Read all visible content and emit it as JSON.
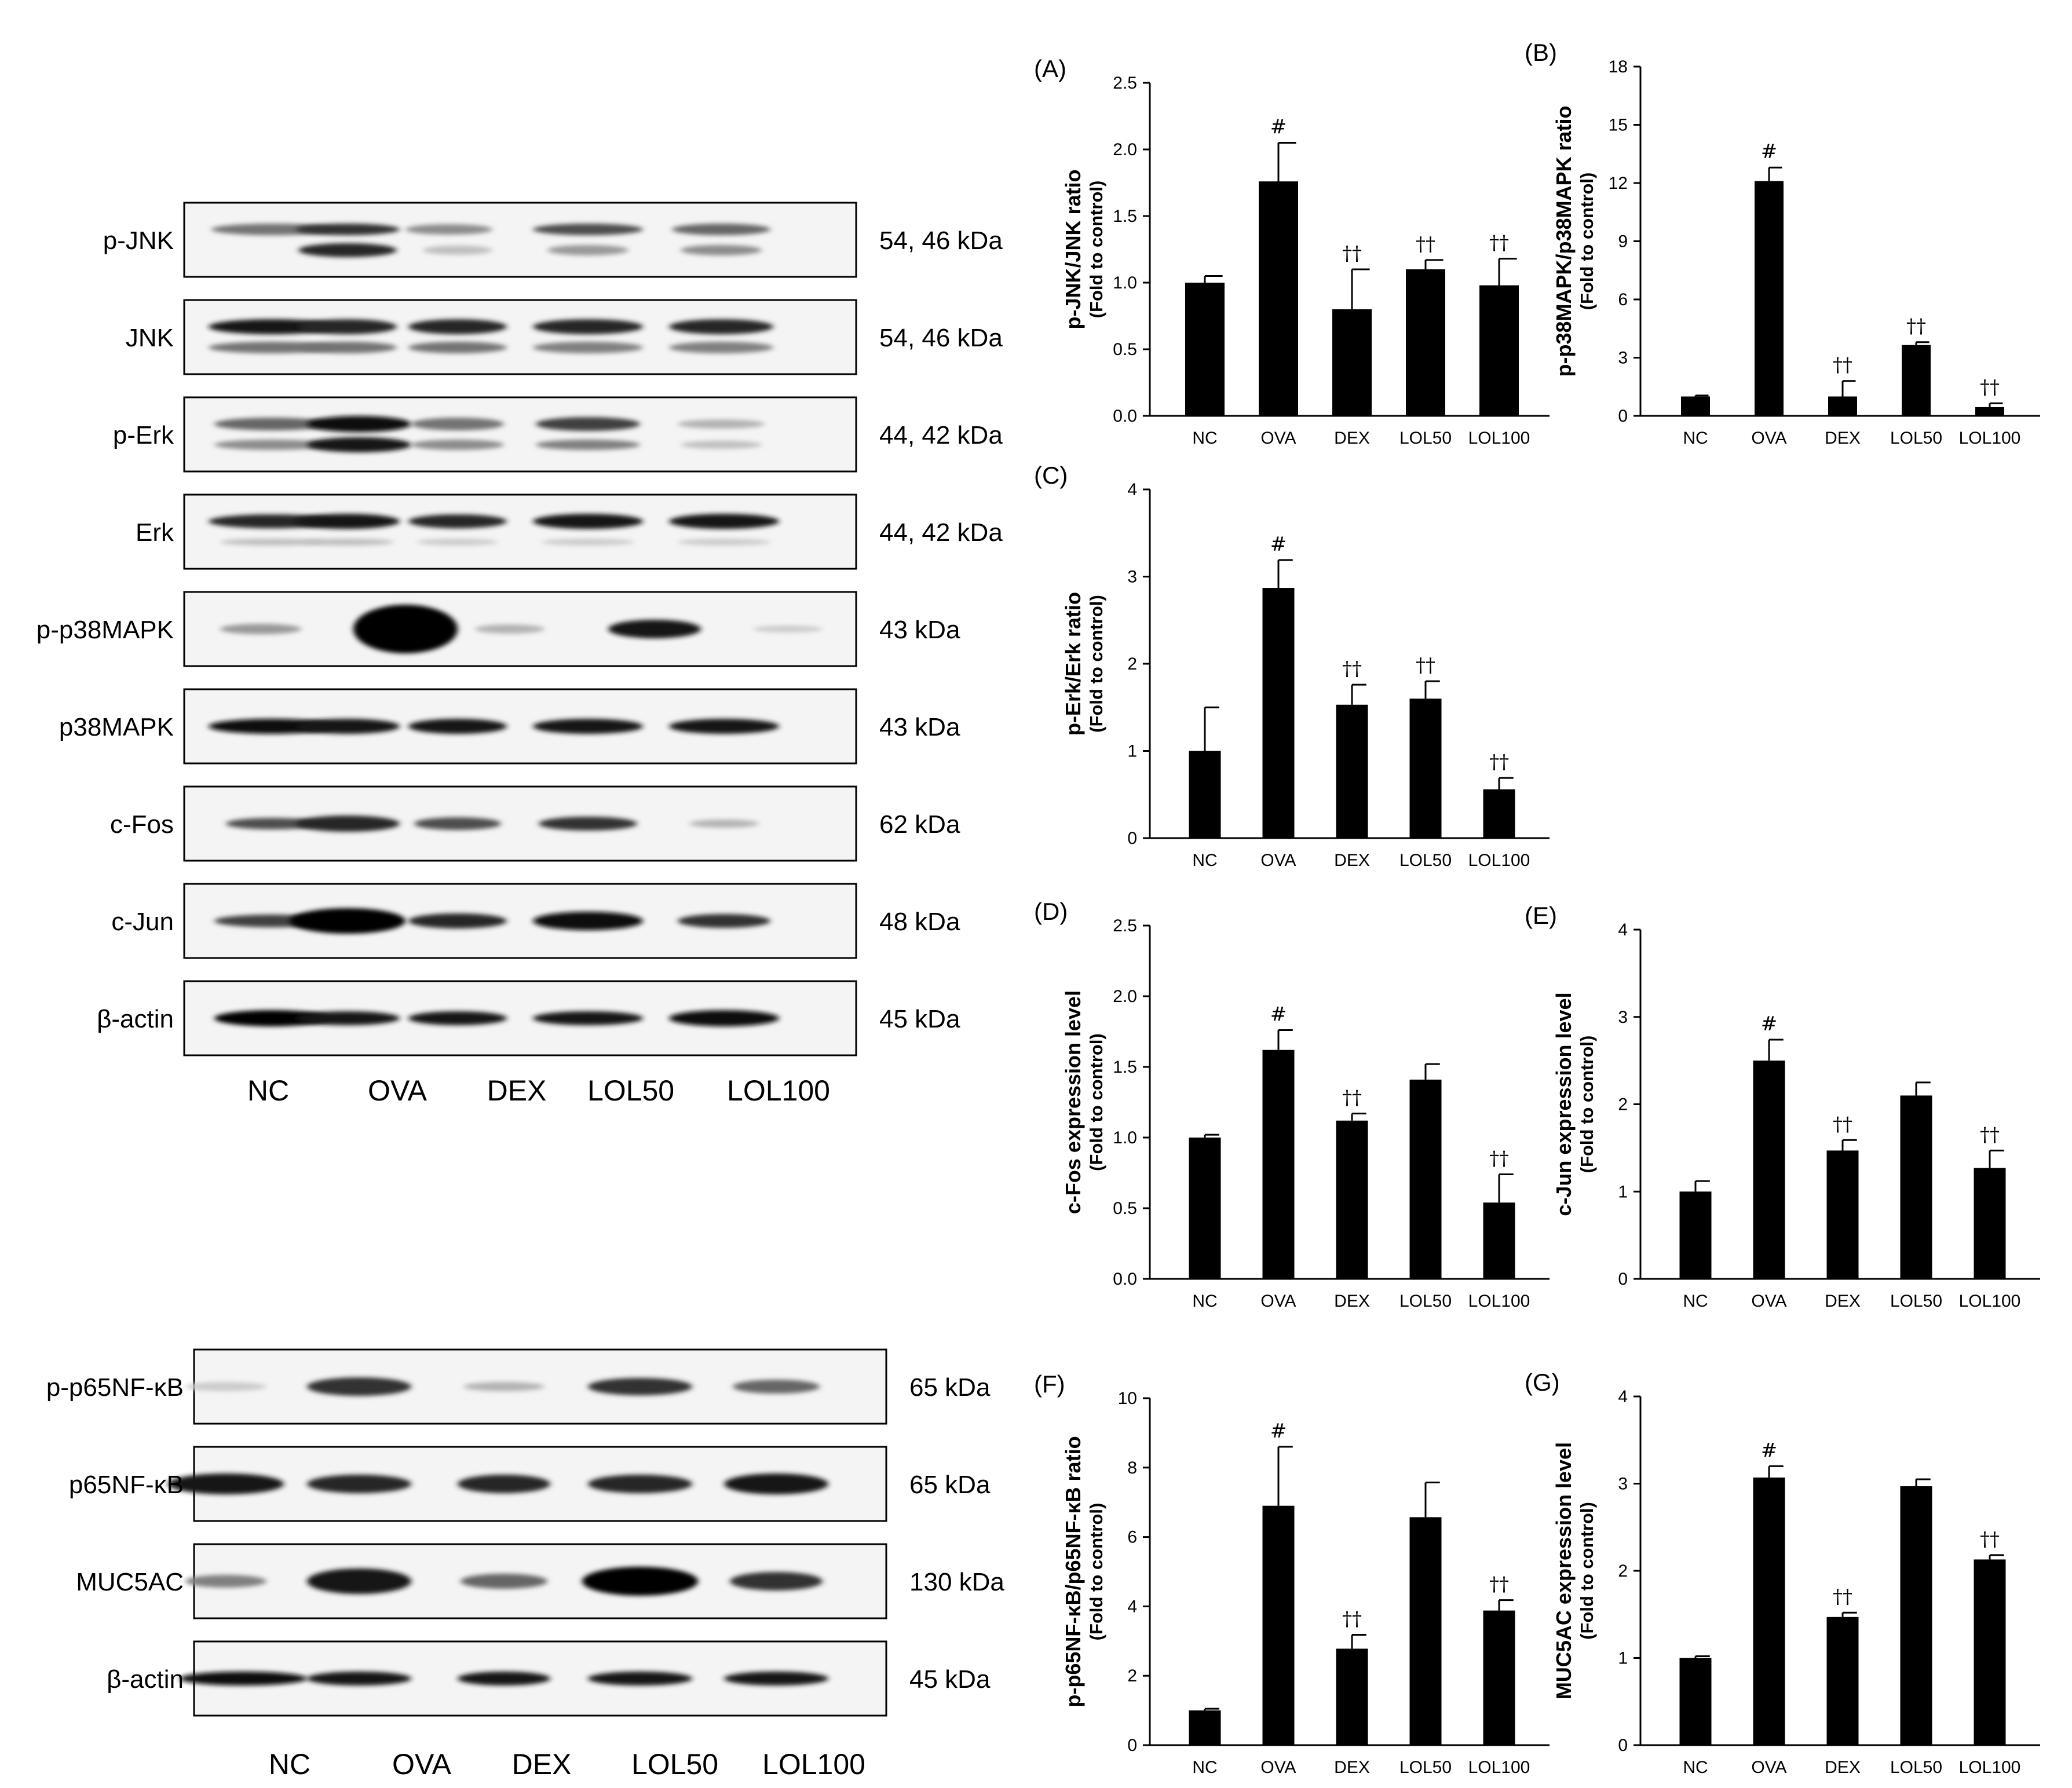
{
  "blots": {
    "top": {
      "rows": [
        {
          "label": "p-JNK",
          "size": "54, 46 kDa"
        },
        {
          "label": "JNK",
          "size": "54, 46 kDa"
        },
        {
          "label": "p-Erk",
          "size": "44, 42 kDa"
        },
        {
          "label": "Erk",
          "size": "44, 42 kDa"
        },
        {
          "label": "p-p38MAPK",
          "size": "43 kDa"
        },
        {
          "label": "p38MAPK",
          "size": "43 kDa"
        },
        {
          "label": "c-Fos",
          "size": "62 kDa"
        },
        {
          "label": "c-Jun",
          "size": "48 kDa"
        },
        {
          "label": "β-actin",
          "size": "45 kDa"
        }
      ],
      "lanes": [
        "NC",
        "OVA",
        "DEX",
        "LOL50",
        "LOL100"
      ]
    },
    "bottom": {
      "rows": [
        {
          "label": "p-p65NF-κB",
          "size": "65 kDa"
        },
        {
          "label": "p65NF-κB",
          "size": "65 kDa"
        },
        {
          "label": "MUC5AC",
          "size": "130 kDa"
        },
        {
          "label": "β-actin",
          "size": "45 kDa"
        }
      ],
      "lanes": [
        "NC",
        "OVA",
        "DEX",
        "LOL50",
        "LOL100"
      ]
    }
  },
  "chart_data": [
    {
      "panel": "(A)",
      "type": "bar",
      "categories": [
        "NC",
        "OVA",
        "DEX",
        "LOL50",
        "LOL100"
      ],
      "values": [
        1.0,
        1.76,
        0.8,
        1.1,
        0.98
      ],
      "errors": [
        0.05,
        0.29,
        0.3,
        0.07,
        0.2
      ],
      "marks": [
        "",
        "#",
        "††",
        "††",
        "††"
      ],
      "ylabel": "p-JNK/JNK ratio",
      "ylabel2": "(Fold to control)",
      "ylim": [
        0,
        2.5
      ],
      "ticks": [
        "0.0",
        "0.5",
        "1.0",
        "1.5",
        "2.0",
        "2.5"
      ]
    },
    {
      "panel": "(B)",
      "type": "bar",
      "categories": [
        "NC",
        "OVA",
        "DEX",
        "LOL50",
        "LOL100"
      ],
      "values": [
        1.0,
        12.1,
        1.0,
        3.65,
        0.45
      ],
      "errors": [
        0.05,
        0.7,
        0.8,
        0.15,
        0.2
      ],
      "marks": [
        "",
        "#",
        "††",
        "††",
        "††"
      ],
      "ylabel": "p-p38MAPK/p38MAPK ratio",
      "ylabel2": "(Fold to control)",
      "ylim": [
        0,
        18
      ],
      "ticks": [
        "0",
        "3",
        "6",
        "9",
        "12",
        "15",
        "18"
      ]
    },
    {
      "panel": "(C)",
      "type": "bar",
      "categories": [
        "NC",
        "OVA",
        "DEX",
        "LOL50",
        "LOL100"
      ],
      "values": [
        1.0,
        2.87,
        1.53,
        1.6,
        0.56
      ],
      "errors": [
        0.5,
        0.32,
        0.23,
        0.2,
        0.13
      ],
      "marks": [
        "",
        "#",
        "††",
        "††",
        "††"
      ],
      "ylabel": "p-Erk/Erk ratio",
      "ylabel2": "(Fold to control)",
      "ylim": [
        0,
        4
      ],
      "ticks": [
        "0",
        "1",
        "2",
        "3",
        "4"
      ]
    },
    {
      "panel": "(D)",
      "type": "bar",
      "categories": [
        "NC",
        "OVA",
        "DEX",
        "LOL50",
        "LOL100"
      ],
      "values": [
        1.0,
        1.62,
        1.12,
        1.41,
        0.54
      ],
      "errors": [
        0.02,
        0.14,
        0.05,
        0.11,
        0.2
      ],
      "marks": [
        "",
        "#",
        "††",
        "",
        "††"
      ],
      "ylabel": "c-Fos expression level",
      "ylabel2": "(Fold to control)",
      "ylim": [
        0,
        2.5
      ],
      "ticks": [
        "0.0",
        "0.5",
        "1.0",
        "1.5",
        "2.0",
        "2.5"
      ]
    },
    {
      "panel": "(E)",
      "type": "bar",
      "categories": [
        "NC",
        "OVA",
        "DEX",
        "LOL50",
        "LOL100"
      ],
      "values": [
        1.0,
        2.5,
        1.47,
        2.1,
        1.27
      ],
      "errors": [
        0.12,
        0.24,
        0.12,
        0.15,
        0.2
      ],
      "marks": [
        "",
        "#",
        "††",
        "",
        "††"
      ],
      "ylabel": "c-Jun expression level",
      "ylabel2": "(Fold to control)",
      "ylim": [
        0,
        4
      ],
      "ticks": [
        "0",
        "1",
        "2",
        "3",
        "4"
      ]
    },
    {
      "panel": "(F)",
      "type": "bar",
      "categories": [
        "NC",
        "OVA",
        "DEX",
        "LOL50",
        "LOL100"
      ],
      "values": [
        1.0,
        6.9,
        2.78,
        6.57,
        3.88
      ],
      "errors": [
        0.05,
        1.7,
        0.4,
        1.0,
        0.3
      ],
      "marks": [
        "",
        "#",
        "††",
        "",
        "††"
      ],
      "ylabel": "p-p65NF-κB/p65NF-κB ratio",
      "ylabel2": "(Fold to control)",
      "ylim": [
        0,
        10
      ],
      "ticks": [
        "0",
        "2",
        "4",
        "6",
        "8",
        "10"
      ]
    },
    {
      "panel": "(G)",
      "type": "bar",
      "categories": [
        "NC",
        "OVA",
        "DEX",
        "LOL50",
        "LOL100"
      ],
      "values": [
        1.0,
        3.07,
        1.47,
        2.97,
        2.13
      ],
      "errors": [
        0.02,
        0.13,
        0.05,
        0.08,
        0.05
      ],
      "marks": [
        "",
        "#",
        "††",
        "",
        "††"
      ],
      "ylabel": "MUC5AC expression level",
      "ylabel2": "(Fold to control)",
      "ylim": [
        0,
        4
      ],
      "ticks": [
        "0",
        "1",
        "2",
        "3",
        "4"
      ]
    }
  ]
}
